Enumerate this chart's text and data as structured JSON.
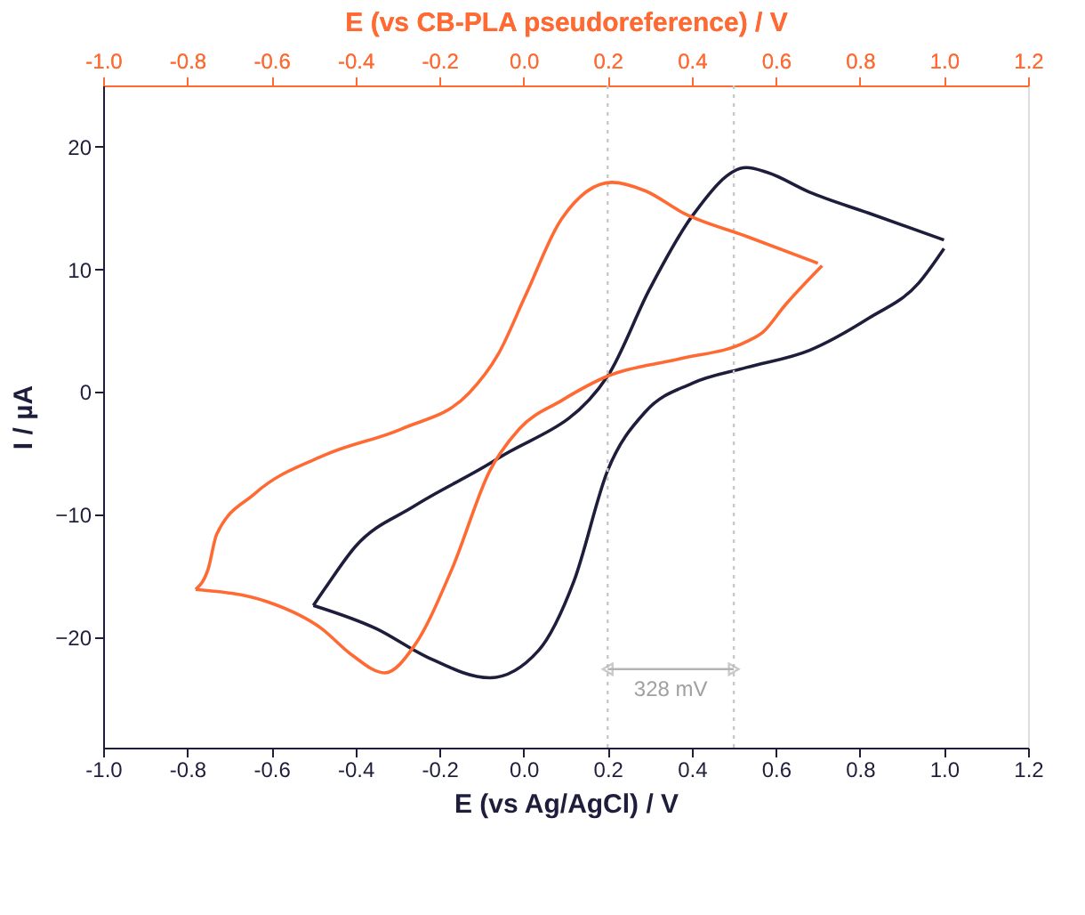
{
  "chart_data": {
    "type": "line",
    "xlabel": "E (vs Ag/AgCl) / V",
    "ylabel": "I / µA",
    "x2label": "E (vs CB-PLA pseudoreference) / V",
    "xlim": [
      -1.0,
      1.2
    ],
    "xticks": [
      {
        "value": -1.0,
        "label": "-1.0"
      },
      {
        "value": -0.8,
        "label": "-0.8"
      },
      {
        "value": -0.6,
        "label": "-0.6"
      },
      {
        "value": -0.4,
        "label": "-0.4"
      },
      {
        "value": -0.2,
        "label": "-0.2"
      },
      {
        "value": 0,
        "label": "0.0"
      },
      {
        "value": 0.2,
        "label": "0.2"
      },
      {
        "value": 0.4,
        "label": "0.4"
      },
      {
        "value": 0.6,
        "label": "0.6"
      },
      {
        "value": 0.8,
        "label": "0.8"
      },
      {
        "value": 1.0,
        "label": "1.0"
      },
      {
        "value": 1.2,
        "label": "1.2"
      }
    ],
    "x2lim": [
      -1.0,
      1.2
    ],
    "x2ticks": [
      {
        "value": -1.0,
        "label": "-1.0"
      },
      {
        "value": -0.8,
        "label": "-0.8"
      },
      {
        "value": -0.6,
        "label": "-0.6"
      },
      {
        "value": -0.4,
        "label": "-0.4"
      },
      {
        "value": -0.2,
        "label": "-0.2"
      },
      {
        "value": 0,
        "label": "0.0"
      },
      {
        "value": 0.2,
        "label": "0.2"
      },
      {
        "value": 0.4,
        "label": "0.4"
      },
      {
        "value": 0.6,
        "label": "0.6"
      },
      {
        "value": 0.8,
        "label": "0.8"
      },
      {
        "value": 1.0,
        "label": "1.0"
      },
      {
        "value": 1.2,
        "label": "1.2"
      }
    ],
    "ylim": [
      -29,
      25
    ],
    "yticks": [
      -20,
      -10,
      0,
      10,
      20
    ],
    "grid": false,
    "marker": "none",
    "line_style": "solid",
    "ref_lines": [
      {
        "axis": "x",
        "value": 0.2,
        "color": "#c8c8c8",
        "line_style": "dotted"
      },
      {
        "axis": "x",
        "value": 0.5,
        "color": "#c8c8c8",
        "line_style": "dotted"
      }
    ],
    "annotations": [
      {
        "text": "328 mV",
        "x": 0.5,
        "y": -22.6
      }
    ],
    "series": [
      {
        "color": "#1e1e3c",
        "x": [
          -0.5,
          -0.35,
          -0.23,
          -0.08,
          0.035,
          0.12,
          0.2,
          0.29,
          0.4,
          0.53,
          0.68,
          0.82,
          0.94,
          1.0
        ],
        "values": [
          -17.4,
          -19.3,
          -21.6,
          -23.3,
          -21.1,
          -15.4,
          -6.4,
          -1.6,
          0.7,
          2.0,
          3.4,
          6,
          8.9,
          11.7
        ]
      },
      {
        "color": "#1e1e3c",
        "x": [
          -0.5,
          -0.47,
          -0.4,
          -0.26,
          -0.06,
          0.2,
          0.3,
          0.4,
          0.53,
          0.58,
          0.68,
          0.82,
          1.0
        ],
        "values": [
          -17.4,
          -15.9,
          -12.6,
          -9.3,
          -5.4,
          1.3,
          8.4,
          14.3,
          18.3,
          17.9,
          16.3,
          14.6,
          12.4
        ]
      },
      {
        "color": "#ff6a33",
        "axis": "x2",
        "x": [
          -0.78,
          -0.61,
          -0.48,
          -0.41,
          -0.33,
          -0.26,
          -0.17,
          -0.08,
          -0.01,
          0.09,
          0.2,
          0.37,
          0.53,
          0.57,
          0.62,
          0.71
        ],
        "values": [
          -16.1,
          -17.1,
          -19.3,
          -21.4,
          -22.9,
          -20.7,
          -14.4,
          -6.4,
          -3,
          -0.7,
          1.3,
          2.7,
          4.1,
          4.9,
          7,
          10.3
        ]
      },
      {
        "color": "#ff6a33",
        "axis": "x2",
        "x": [
          -0.78,
          -0.75,
          -0.73,
          -0.64,
          -0.47,
          -0.29,
          -0.13,
          -0.06,
          0.005,
          0.09,
          0.21,
          0.29,
          0.38,
          0.53,
          0.7
        ],
        "values": [
          -16.1,
          -14.4,
          -11.6,
          -8.3,
          -5.1,
          -3,
          -0.1,
          3.1,
          7.9,
          14.1,
          17.1,
          16.4,
          14.6,
          12.7,
          10.5
        ]
      }
    ]
  }
}
